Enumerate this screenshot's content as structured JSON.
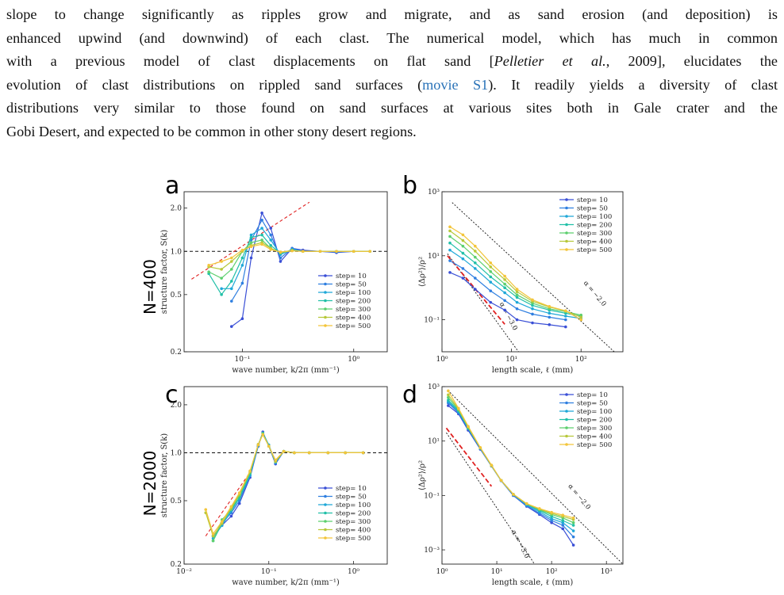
{
  "text": {
    "line1": "slope to change significantly as ripples grow and migrate, and as sand erosion (and deposition) is",
    "line2": "enhanced upwind (and downwind) of each clast. The numerical model, which has much in common",
    "line3a": "with a previous model of clast displacements on flat sand [",
    "line3_cite": "Pelletier et al.",
    "line3b": ", 2009], elucidates the",
    "line4a": "evolution of clast distributions on rippled sand surfaces (",
    "line4_link": "movie S1",
    "line4b": "). It readily yields a diversity of clast",
    "line5": "distributions very similar to those found on sand surfaces at various sites both in Gale crater and the",
    "line6": "Gobi Desert, and expected to be common in other stony desert regions."
  },
  "figure": {
    "row_labels": [
      "N=400",
      "N=2000"
    ],
    "panel_letters": [
      "a",
      "b",
      "c",
      "d"
    ],
    "sk_ylabel": "structure factor, S(k)",
    "sk_xlabel": "wave number, k/2π (mm⁻¹)",
    "var_ylabel": "⟨Δρ²⟩/ρ²",
    "var_xlabel": "length scale, ℓ (mm)",
    "slope_a": "α = −3.0",
    "slope_b": "α = −2.0",
    "legend": [
      "step= 10",
      "step= 50",
      "step= 100",
      "step= 200",
      "step= 300",
      "step= 400",
      "step= 500"
    ],
    "colors": [
      "#3a4fd6",
      "#2f7fe0",
      "#1fa8d8",
      "#21c0a8",
      "#5ccf6e",
      "#b7c83a",
      "#f3c53a"
    ]
  },
  "chart_data": [
    {
      "panel": "a",
      "type": "line",
      "xscale": "log",
      "yscale": "log",
      "xlabel": "wave number, k/2π (mm⁻¹)",
      "ylabel": "structure factor, S(k)",
      "xlim": [
        0.03,
        2.0
      ],
      "ylim": [
        0.2,
        2.6
      ],
      "xticks": [
        "10⁻¹",
        "10⁰"
      ],
      "yticks": [
        "0.2",
        "0.5",
        "1.0",
        "2.0"
      ],
      "x": [
        0.05,
        0.065,
        0.08,
        0.1,
        0.12,
        0.15,
        0.18,
        0.22,
        0.28,
        0.35,
        0.5,
        0.7,
        1.0,
        1.4
      ],
      "series": [
        {
          "name": "step= 10",
          "values": [
            null,
            null,
            0.3,
            0.34,
            0.9,
            1.85,
            1.45,
            0.85,
            1.05,
            1.02,
            1.0,
            0.98,
            1.0,
            1.0
          ]
        },
        {
          "name": "step= 50",
          "values": [
            null,
            null,
            0.45,
            0.6,
            1.2,
            1.65,
            1.3,
            0.9,
            1.05,
            1.0,
            1.0,
            0.99,
            1.0,
            1.0
          ]
        },
        {
          "name": "step= 100",
          "values": [
            null,
            0.55,
            0.55,
            0.8,
            1.3,
            1.45,
            1.2,
            0.95,
            1.03,
            1.0,
            1.0,
            1.0,
            1.0,
            1.0
          ]
        },
        {
          "name": "step= 200",
          "values": [
            0.7,
            0.5,
            0.62,
            0.9,
            1.25,
            1.3,
            1.1,
            0.97,
            1.02,
            1.0,
            1.0,
            1.0,
            1.0,
            1.0
          ]
        },
        {
          "name": "step= 300",
          "values": [
            0.72,
            0.65,
            0.75,
            1.0,
            1.15,
            1.2,
            1.05,
            0.98,
            1.02,
            1.0,
            1.0,
            1.0,
            1.0,
            1.0
          ]
        },
        {
          "name": "step= 400",
          "values": [
            0.78,
            0.75,
            0.85,
            1.0,
            1.1,
            1.15,
            1.05,
            0.98,
            1.01,
            1.0,
            1.0,
            1.0,
            1.0,
            1.0
          ]
        },
        {
          "name": "step= 500",
          "values": [
            0.8,
            0.85,
            0.9,
            1.02,
            1.08,
            1.12,
            1.03,
            0.99,
            1.01,
            1.0,
            1.0,
            1.0,
            1.0,
            1.0
          ]
        }
      ]
    },
    {
      "panel": "b",
      "type": "line",
      "xscale": "log",
      "yscale": "log",
      "xlabel": "length scale, ℓ (mm)",
      "ylabel": "⟨Δρ²⟩/ρ²",
      "xlim": [
        1,
        400
      ],
      "ylim": [
        0.01,
        1000
      ],
      "xticks": [
        "10⁰",
        "10¹",
        "10²"
      ],
      "yticks": [
        "10⁻¹",
        "10¹",
        "10³"
      ],
      "x": [
        1.3,
        2,
        3,
        5,
        8,
        12,
        20,
        35,
        60,
        100
      ],
      "series": [
        {
          "name": "step= 10",
          "values": [
            3,
            2,
            0.9,
            0.35,
            0.2,
            0.1,
            0.08,
            0.07,
            0.06,
            null
          ]
        },
        {
          "name": "step= 50",
          "values": [
            7,
            4,
            2,
            0.8,
            0.4,
            0.22,
            0.15,
            0.12,
            0.1,
            null
          ]
        },
        {
          "name": "step= 100",
          "values": [
            15,
            8,
            4,
            1.5,
            0.7,
            0.35,
            0.22,
            0.16,
            0.13,
            0.11
          ]
        },
        {
          "name": "step= 200",
          "values": [
            25,
            12,
            6,
            2.2,
            1.0,
            0.5,
            0.28,
            0.2,
            0.16,
            0.13
          ]
        },
        {
          "name": "step= 300",
          "values": [
            40,
            20,
            9,
            3.2,
            1.3,
            0.6,
            0.33,
            0.22,
            0.18,
            0.14
          ]
        },
        {
          "name": "step= 400",
          "values": [
            60,
            30,
            14,
            4.5,
            1.8,
            0.75,
            0.38,
            0.25,
            0.19,
            0.12
          ]
        },
        {
          "name": "step= 500",
          "values": [
            80,
            45,
            20,
            6,
            2.3,
            0.9,
            0.42,
            0.26,
            0.19,
            0.1
          ]
        }
      ]
    },
    {
      "panel": "c",
      "type": "line",
      "xscale": "log",
      "yscale": "log",
      "xlabel": "wave number, k/2π (mm⁻¹)",
      "ylabel": "structure factor, S(k)",
      "xlim": [
        0.01,
        2.5
      ],
      "ylim": [
        0.2,
        2.6
      ],
      "xticks": [
        "10⁻²",
        "10⁻¹",
        "10⁰"
      ],
      "yticks": [
        "0.2",
        "0.5",
        "1.0",
        "2.0"
      ],
      "x": [
        0.018,
        0.022,
        0.028,
        0.036,
        0.045,
        0.06,
        0.075,
        0.085,
        0.1,
        0.12,
        0.15,
        0.2,
        0.3,
        0.5,
        0.8,
        1.3
      ],
      "series": [
        {
          "name": "step= 10",
          "values": [
            null,
            0.3,
            0.35,
            0.4,
            0.48,
            0.7,
            1.1,
            1.35,
            1.1,
            0.85,
            1.02,
            1.0,
            1.0,
            1.0,
            1.0,
            1.0
          ]
        },
        {
          "name": "step= 50",
          "values": [
            null,
            0.3,
            0.36,
            0.42,
            0.5,
            0.72,
            1.1,
            1.33,
            1.1,
            0.86,
            1.02,
            1.0,
            1.0,
            1.0,
            1.0,
            1.0
          ]
        },
        {
          "name": "step= 100",
          "values": [
            null,
            0.29,
            0.35,
            0.43,
            0.52,
            0.72,
            1.12,
            1.33,
            1.12,
            0.87,
            1.02,
            1.0,
            1.0,
            1.0,
            1.0,
            1.0
          ]
        },
        {
          "name": "step= 200",
          "values": [
            null,
            0.28,
            0.36,
            0.44,
            0.52,
            0.74,
            1.12,
            1.32,
            1.1,
            0.88,
            1.02,
            1.0,
            1.0,
            1.0,
            1.0,
            1.0
          ]
        },
        {
          "name": "step= 300",
          "values": [
            null,
            0.28,
            0.38,
            0.44,
            0.54,
            0.75,
            1.12,
            1.32,
            1.1,
            0.88,
            1.02,
            1.0,
            1.0,
            1.0,
            1.0,
            1.0
          ]
        },
        {
          "name": "step= 400",
          "values": [
            0.42,
            0.3,
            0.36,
            0.45,
            0.55,
            0.76,
            1.13,
            1.3,
            1.1,
            0.88,
            1.02,
            1.0,
            1.0,
            1.0,
            1.0,
            1.0
          ]
        },
        {
          "name": "step= 500",
          "values": [
            0.44,
            0.31,
            0.37,
            0.46,
            0.56,
            0.77,
            1.12,
            1.3,
            1.1,
            0.9,
            1.02,
            1.0,
            1.0,
            1.0,
            1.0,
            1.0
          ]
        }
      ]
    },
    {
      "panel": "d",
      "type": "line",
      "xscale": "log",
      "yscale": "log",
      "xlabel": "length scale, ℓ (mm)",
      "ylabel": "⟨Δρ²⟩/ρ²",
      "xlim": [
        1,
        2000
      ],
      "ylim": [
        0.0003,
        1000
      ],
      "xticks": [
        "10⁰",
        "10¹",
        "10²",
        "10³"
      ],
      "yticks": [
        "10⁻³",
        "10⁻¹",
        "10¹",
        "10³"
      ],
      "x": [
        1.3,
        2,
        3,
        5,
        8,
        12,
        20,
        35,
        60,
        100,
        160,
        250
      ],
      "series": [
        {
          "name": "step= 10",
          "values": [
            200,
            100,
            25,
            5,
            1.2,
            0.35,
            0.1,
            0.04,
            0.02,
            0.01,
            0.006,
            0.0015
          ]
        },
        {
          "name": "step= 50",
          "values": [
            250,
            110,
            28,
            5.2,
            1.2,
            0.35,
            0.1,
            0.042,
            0.022,
            0.012,
            0.008,
            0.003
          ]
        },
        {
          "name": "step= 100",
          "values": [
            280,
            120,
            30,
            5.5,
            1.25,
            0.36,
            0.11,
            0.045,
            0.025,
            0.014,
            0.01,
            0.005
          ]
        },
        {
          "name": "step= 200",
          "values": [
            320,
            130,
            30,
            5.5,
            1.25,
            0.36,
            0.11,
            0.048,
            0.028,
            0.017,
            0.012,
            0.008
          ]
        },
        {
          "name": "step= 300",
          "values": [
            400,
            140,
            32,
            5.6,
            1.25,
            0.36,
            0.11,
            0.05,
            0.03,
            0.02,
            0.015,
            0.01
          ]
        },
        {
          "name": "step= 400",
          "values": [
            500,
            150,
            33,
            5.6,
            1.25,
            0.36,
            0.11,
            0.05,
            0.032,
            0.022,
            0.017,
            0.013
          ]
        },
        {
          "name": "step= 500",
          "values": [
            700,
            160,
            35,
            5.8,
            1.3,
            0.36,
            0.11,
            0.05,
            0.033,
            0.024,
            0.019,
            0.015
          ]
        }
      ]
    }
  ]
}
